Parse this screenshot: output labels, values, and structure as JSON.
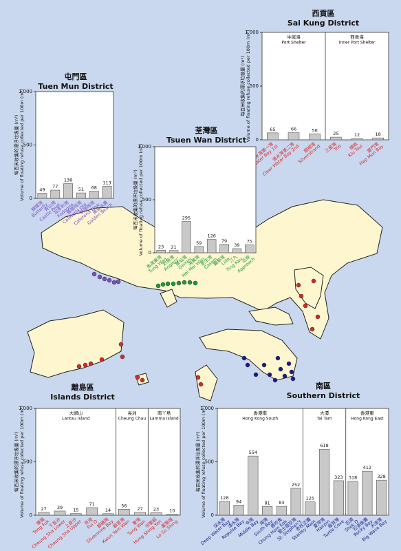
{
  "chart_data": [
    {
      "type": "bar",
      "title": "屯門區",
      "subtitle": "Tuen Mun District",
      "ylabel_zh": "每百米收集的漂浮垃圾量 (m³)",
      "ylabel": "Volume of floating refuse collected per 100m (m³)",
      "label_color": "#7b4fc9",
      "bar_color": "#c8c8c8",
      "ylim": [
        0,
        1000
      ],
      "yticks": [
        0,
        500,
        {
          "value": 1000,
          "label": "1,000"
        }
      ],
      "groups": [
        {
          "categories_zh": [
            "蝴蝶灣",
            "青山灣",
            "加多利灣",
            "舊咖啡灣",
            "新咖啡灣",
            "黃金泳灘"
          ],
          "categories": [
            "Butterfly",
            "Castle Peak",
            "Kadoorie",
            "Cafeteria Old",
            "Cafeteria New",
            "Golden Beach"
          ],
          "values": [
            49,
            77,
            138,
            51,
            68,
            113
          ]
        }
      ]
    },
    {
      "type": "bar",
      "title": "西貢區",
      "subtitle": "Sai Kung District",
      "ylabel_zh": "每百米收集的漂浮垃圾量 (m³)",
      "ylabel": "Volume of floating refuse collected per 100m (m³)",
      "label_color": "#d42a2a",
      "bar_color": "#c8c8c8",
      "ylim": [
        0,
        1000
      ],
      "yticks": [
        0,
        500,
        {
          "value": 1000,
          "label": "1,000"
        }
      ],
      "groups": [
        {
          "label_zh": "牛尾海",
          "label_en": "Port Shelter",
          "categories_zh": [
            "清水灣第一灣",
            "清水灣第二灣",
            "銀線灣"
          ],
          "categories": [
            "Clear Water Bay 1st",
            "Clear Water Bay 2nd",
            "Silverstrand"
          ],
          "values": [
            65,
            66,
            56
          ]
        },
        {
          "label_zh": "西貢海",
          "label_en": "Inner Port Shelter",
          "categories_zh": [
            "三星灣",
            "橋咀",
            "廈門灣"
          ],
          "categories": [
            "Trio",
            "Kiu Tsui",
            "Hap Mun Bay"
          ],
          "values": [
            25,
            12,
            18
          ]
        }
      ]
    },
    {
      "type": "bar",
      "title": "荃灣區",
      "subtitle": "Tsuen Wan District",
      "ylabel_zh": "每百米收集的漂浮垃圾量 (m³)",
      "ylabel": "Volume of floating refuse collected per 100m (m³)",
      "label_color": "#1e9a3a",
      "bar_color": "#c8c8c8",
      "ylim": [
        0,
        1000
      ],
      "yticks": [
        0,
        500,
        {
          "value": 1000,
          "label": "1,000"
        }
      ],
      "groups": [
        {
          "categories_zh": [
            "馬灣東灣",
            "釣魚灣",
            "雙仙灣",
            "海美灣",
            "更生灣",
            "麗都灣",
            "汀九",
            "近岸"
          ],
          "categories": [
            "Tung Wan",
            "Anglers'",
            "Gemini",
            "Hoi Mei Wan",
            "Casam",
            "Lido",
            "Ting Kau",
            "Approach"
          ],
          "values": [
            23,
            21,
            295,
            59,
            126,
            79,
            39,
            75
          ]
        }
      ]
    },
    {
      "type": "bar",
      "title": "離島區",
      "subtitle": "Islands District",
      "ylabel_zh": "每百米收集的漂浮垃圾量 (m³)",
      "ylabel": "Volume of floating refuse collected per 100m (m³)",
      "label_color": "#d42a2a",
      "bar_color": "#c8c8c8",
      "ylim": [
        0,
        1000
      ],
      "yticks": [
        0,
        500,
        {
          "value": 1000,
          "label": "1,000"
        }
      ],
      "groups": [
        {
          "label_zh": "大嶼山",
          "label_en": "Lantau Island",
          "categories_zh": [
            "塘福",
            "下長沙",
            "上長沙",
            "貝澳",
            "銀礦灣"
          ],
          "categories": [
            "Tong Fuk",
            "Cheung Sha Lower",
            "Cheung Sha Upper",
            "Pui O",
            "Silvermine Bay"
          ],
          "values": [
            27,
            39,
            15,
            71,
            14
          ]
        },
        {
          "label_zh": "長洲",
          "label_en": "Cheung Chau",
          "categories_zh": [
            "觀音灣",
            "東灣"
          ],
          "categories": [
            "Kwun Yam Wan",
            "Tung Wan"
          ],
          "values": [
            56,
            27
          ]
        },
        {
          "label_zh": "南丫島",
          "label_en": "Lamma Island",
          "categories_zh": [
            "洪聖爺",
            "蘆鬚城"
          ],
          "categories": [
            "Hung Shing Yeh",
            "Lo So Shing"
          ],
          "values": [
            23,
            10
          ]
        }
      ]
    },
    {
      "type": "bar",
      "title": "南區",
      "subtitle": "Southern District",
      "ylabel_zh": "每百米收集的漂浮垃圾量 (m³)",
      "ylabel": "Volume of floating refuse collected per 100m (m³)",
      "label_color": "#1b1b8f",
      "bar_color": "#c8c8c8",
      "ylim": [
        0,
        1000
      ],
      "yticks": [
        0,
        500,
        {
          "value": 1000,
          "label": "1,000"
        }
      ],
      "groups": [
        {
          "label_zh": "香港南",
          "label_en": "Hong Kong South",
          "categories_zh": [
            "深水灣",
            "淺水灣",
            "中灣",
            "南灣",
            "舂坎角",
            "聖士提反灣"
          ],
          "categories": [
            "Deep Water Bay",
            "Repulse Bay",
            "Middle Bay",
            "South Bay",
            "Chung Hom Kok",
            "St. Stephen's"
          ],
          "values": [
            128,
            94,
            554,
            81,
            83,
            252
          ]
        },
        {
          "label_zh": "大潭",
          "label_en": "Tai Tam",
          "categories_zh": [
            "赤柱正灘",
            "夏萍灣",
            "龜背灣"
          ],
          "categories": [
            "Stanley Main",
            "Hairpin",
            "Turtle Cove"
          ],
          "values": [
            125,
            618,
            323
          ]
        },
        {
          "label_zh": "香港東",
          "label_en": "Hong Kong East",
          "categories_zh": [
            "石澳",
            "石澳後灘",
            "大浪灣"
          ],
          "categories": [
            "Shek O",
            "Rocky Bay",
            "Big Wave Bay"
          ],
          "values": [
            318,
            412,
            328
          ]
        }
      ]
    }
  ]
}
